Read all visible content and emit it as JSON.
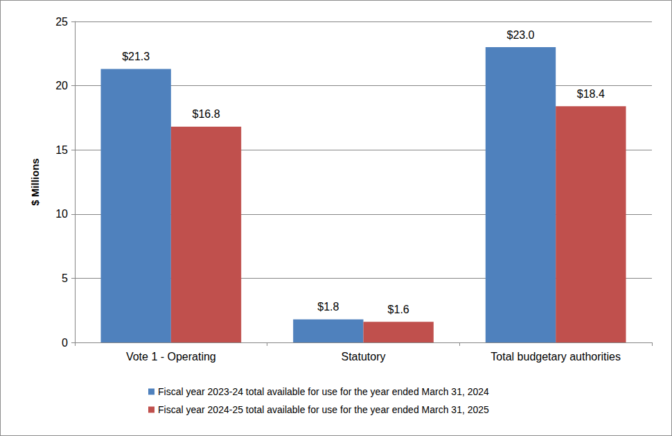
{
  "chart_data": {
    "type": "bar",
    "y_label": "$ Millions",
    "categories": [
      "Vote 1 - Operating",
      "Statutory",
      "Total budgetary authorities"
    ],
    "series": [
      {
        "name": "Fiscal year 2023-24 total available for use for the year ended March 31, 2024",
        "color": "#4f81bd",
        "values": [
          21.3,
          1.8,
          23.0
        ],
        "value_labels": [
          "$21.3",
          "$1.8",
          "$23.0"
        ]
      },
      {
        "name": "Fiscal year 2024-25 total available for use for the year ended March 31, 2025",
        "color": "#c0504d",
        "values": [
          16.8,
          1.6,
          18.4
        ],
        "value_labels": [
          "$16.8",
          "$1.6",
          "$18.4"
        ]
      }
    ],
    "ylim": [
      0,
      25
    ],
    "yticks": [
      0,
      5,
      10,
      15,
      20,
      25
    ],
    "grid": true,
    "data_labels": true,
    "legend": "bottom"
  }
}
